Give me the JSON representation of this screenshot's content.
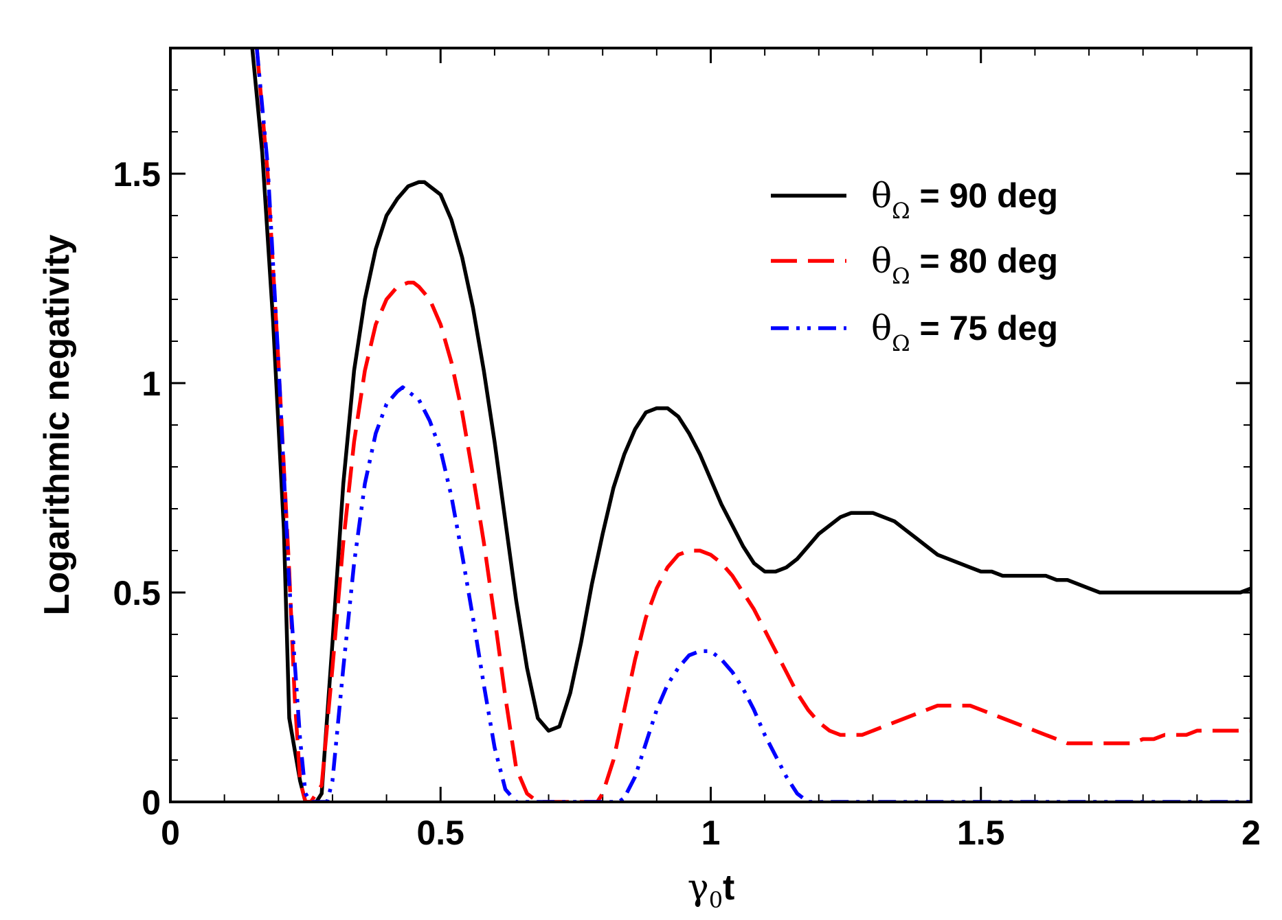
{
  "chart_data": {
    "type": "line",
    "title": "",
    "xlabel": {
      "main": "γ",
      "sub": "0",
      "rest": "t"
    },
    "ylabel": "Logarithmic negativity",
    "xlim": [
      0,
      2
    ],
    "ylim": [
      0,
      1.8
    ],
    "x_ticks": [
      0,
      0.5,
      1,
      1.5,
      2
    ],
    "x_tick_labels": [
      "0",
      "0.5",
      "1",
      "1.5",
      "2"
    ],
    "y_ticks": [
      0,
      0.5,
      1,
      1.5
    ],
    "y_tick_labels": [
      "0",
      "0.5",
      "1",
      "1.5"
    ],
    "grid": false,
    "legend_position": "top-right",
    "series": [
      {
        "name": "θΩ = 90 deg",
        "label_symbol": "θ",
        "label_sub": "Ω",
        "label_rest": " = 90 deg",
        "color": "#000000",
        "dash": "solid",
        "x": [
          0.15,
          0.17,
          0.19,
          0.21,
          0.22,
          0.24,
          0.25,
          0.26,
          0.27,
          0.28,
          0.3,
          0.32,
          0.34,
          0.36,
          0.38,
          0.4,
          0.42,
          0.44,
          0.46,
          0.47,
          0.48,
          0.5,
          0.52,
          0.54,
          0.56,
          0.58,
          0.6,
          0.62,
          0.64,
          0.66,
          0.68,
          0.7,
          0.72,
          0.74,
          0.76,
          0.78,
          0.8,
          0.82,
          0.84,
          0.86,
          0.88,
          0.9,
          0.92,
          0.94,
          0.96,
          0.98,
          1.0,
          1.02,
          1.04,
          1.06,
          1.08,
          1.1,
          1.12,
          1.14,
          1.16,
          1.18,
          1.2,
          1.22,
          1.24,
          1.26,
          1.28,
          1.3,
          1.32,
          1.34,
          1.36,
          1.38,
          1.4,
          1.42,
          1.44,
          1.46,
          1.48,
          1.5,
          1.52,
          1.54,
          1.56,
          1.58,
          1.6,
          1.62,
          1.64,
          1.66,
          1.68,
          1.7,
          1.72,
          1.74,
          1.76,
          1.78,
          1.8,
          1.82,
          1.84,
          1.86,
          1.88,
          1.9,
          1.92,
          1.94,
          1.96,
          1.98,
          2.0
        ],
        "y": [
          1.82,
          1.55,
          1.15,
          0.65,
          0.2,
          0.05,
          0.0,
          0.0,
          0.0,
          0.02,
          0.38,
          0.76,
          1.03,
          1.2,
          1.32,
          1.4,
          1.44,
          1.47,
          1.48,
          1.48,
          1.47,
          1.45,
          1.39,
          1.3,
          1.18,
          1.03,
          0.86,
          0.67,
          0.48,
          0.32,
          0.2,
          0.17,
          0.18,
          0.26,
          0.38,
          0.52,
          0.64,
          0.75,
          0.83,
          0.89,
          0.93,
          0.94,
          0.94,
          0.92,
          0.88,
          0.83,
          0.77,
          0.71,
          0.66,
          0.61,
          0.57,
          0.55,
          0.55,
          0.56,
          0.58,
          0.61,
          0.64,
          0.66,
          0.68,
          0.69,
          0.69,
          0.69,
          0.68,
          0.67,
          0.65,
          0.63,
          0.61,
          0.59,
          0.58,
          0.57,
          0.56,
          0.55,
          0.55,
          0.54,
          0.54,
          0.54,
          0.54,
          0.54,
          0.53,
          0.53,
          0.52,
          0.51,
          0.5,
          0.5,
          0.5,
          0.5,
          0.5,
          0.5,
          0.5,
          0.5,
          0.5,
          0.5,
          0.5,
          0.5,
          0.5,
          0.5,
          0.51
        ]
      },
      {
        "name": "θΩ = 80 deg",
        "label_symbol": "θ",
        "label_sub": "Ω",
        "label_rest": " = 80 deg",
        "color": "#ff0000",
        "dash": "dashed",
        "x": [
          0.16,
          0.18,
          0.2,
          0.22,
          0.23,
          0.24,
          0.25,
          0.26,
          0.28,
          0.3,
          0.32,
          0.34,
          0.36,
          0.38,
          0.4,
          0.42,
          0.44,
          0.45,
          0.46,
          0.48,
          0.5,
          0.52,
          0.54,
          0.56,
          0.58,
          0.6,
          0.62,
          0.64,
          0.66,
          0.68,
          0.7,
          0.74,
          0.78,
          0.79,
          0.8,
          0.82,
          0.84,
          0.86,
          0.88,
          0.9,
          0.92,
          0.94,
          0.96,
          0.98,
          1.0,
          1.02,
          1.04,
          1.06,
          1.08,
          1.1,
          1.12,
          1.14,
          1.16,
          1.18,
          1.2,
          1.22,
          1.24,
          1.26,
          1.28,
          1.3,
          1.32,
          1.34,
          1.36,
          1.38,
          1.4,
          1.42,
          1.44,
          1.46,
          1.48,
          1.5,
          1.52,
          1.54,
          1.56,
          1.58,
          1.6,
          1.62,
          1.64,
          1.66,
          1.68,
          1.7,
          1.72,
          1.74,
          1.76,
          1.78,
          1.8,
          1.82,
          1.84,
          1.86,
          1.88,
          1.9,
          1.92,
          1.94,
          1.96,
          1.98,
          2.0
        ],
        "y": [
          1.8,
          1.5,
          1.05,
          0.55,
          0.25,
          0.05,
          0.0,
          0.0,
          0.04,
          0.32,
          0.62,
          0.86,
          1.03,
          1.14,
          1.2,
          1.23,
          1.24,
          1.24,
          1.23,
          1.2,
          1.14,
          1.05,
          0.93,
          0.78,
          0.62,
          0.44,
          0.25,
          0.08,
          0.02,
          0.0,
          0.0,
          0.0,
          0.0,
          0.0,
          0.02,
          0.1,
          0.22,
          0.34,
          0.44,
          0.51,
          0.56,
          0.59,
          0.6,
          0.6,
          0.59,
          0.57,
          0.54,
          0.5,
          0.46,
          0.41,
          0.36,
          0.31,
          0.26,
          0.22,
          0.19,
          0.17,
          0.16,
          0.16,
          0.16,
          0.17,
          0.18,
          0.19,
          0.2,
          0.21,
          0.22,
          0.23,
          0.23,
          0.23,
          0.23,
          0.22,
          0.21,
          0.2,
          0.19,
          0.18,
          0.17,
          0.16,
          0.15,
          0.14,
          0.14,
          0.14,
          0.14,
          0.14,
          0.14,
          0.14,
          0.15,
          0.15,
          0.16,
          0.16,
          0.16,
          0.17,
          0.17,
          0.17,
          0.17,
          0.17,
          0.17
        ]
      },
      {
        "name": "θΩ = 75 deg",
        "label_symbol": "θ",
        "label_sub": "Ω",
        "label_rest": " = 75 deg",
        "color": "#0000ff",
        "dash": "dash-dot-dot",
        "x": [
          0.16,
          0.18,
          0.2,
          0.22,
          0.24,
          0.25,
          0.26,
          0.27,
          0.28,
          0.29,
          0.3,
          0.32,
          0.34,
          0.36,
          0.38,
          0.4,
          0.42,
          0.43,
          0.44,
          0.46,
          0.48,
          0.5,
          0.52,
          0.54,
          0.56,
          0.58,
          0.6,
          0.62,
          0.64,
          0.66,
          0.7,
          0.76,
          0.82,
          0.83,
          0.84,
          0.86,
          0.88,
          0.9,
          0.92,
          0.94,
          0.96,
          0.98,
          1.0,
          1.02,
          1.04,
          1.06,
          1.08,
          1.1,
          1.12,
          1.14,
          1.16,
          1.18,
          1.2,
          1.3,
          1.4,
          1.5,
          1.6,
          1.7,
          1.8,
          1.9,
          2.0
        ],
        "y": [
          1.8,
          1.52,
          1.05,
          0.52,
          0.15,
          0.02,
          0.0,
          0.0,
          0.0,
          0.0,
          0.05,
          0.32,
          0.57,
          0.76,
          0.88,
          0.95,
          0.98,
          0.99,
          0.98,
          0.96,
          0.91,
          0.84,
          0.73,
          0.59,
          0.44,
          0.28,
          0.13,
          0.03,
          0.0,
          0.0,
          0.0,
          0.0,
          0.0,
          0.0,
          0.01,
          0.06,
          0.14,
          0.22,
          0.28,
          0.32,
          0.35,
          0.36,
          0.36,
          0.34,
          0.31,
          0.27,
          0.22,
          0.16,
          0.11,
          0.06,
          0.02,
          0.0,
          0.0,
          0.0,
          0.0,
          0.0,
          0.0,
          0.0,
          0.0,
          0.0,
          0.0
        ]
      }
    ]
  }
}
